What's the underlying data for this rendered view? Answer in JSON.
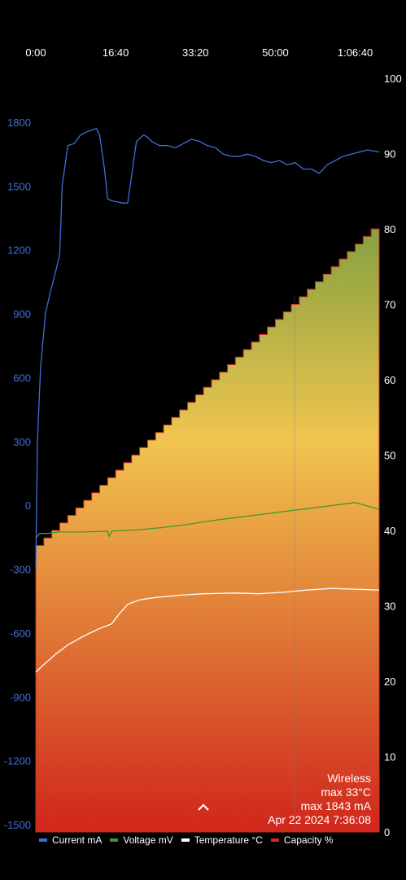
{
  "info": {
    "source": "Wireless",
    "max_temp": "max 33°C",
    "max_current": "max 1843 mA",
    "timestamp": "Apr 22 2024 7:36:08"
  },
  "icons": {
    "expand": "chevron-up-icon"
  },
  "colors": {
    "current": "#3f6fd4",
    "voltage": "#3f9a2a",
    "temperature": "#ffffff",
    "capacity": "#d22a1e",
    "grad_top": "#86a140",
    "grad_mid": "#f0c54f",
    "grad_bottom": "#d0261c"
  },
  "chart_data": {
    "type": "line",
    "x_ticks": [
      "0:00",
      "16:40",
      "33:20",
      "50:00",
      "1:06:40"
    ],
    "x_tick_values_s": [
      0,
      1000,
      2000,
      3000,
      4000
    ],
    "xlim_s": [
      0,
      4300
    ],
    "left_axis": {
      "ticks": [
        1800,
        1500,
        1200,
        900,
        600,
        300,
        0,
        -300,
        -600,
        -900,
        -1200,
        -1500
      ],
      "range": [
        -1500,
        1800
      ]
    },
    "right_axis": {
      "ticks": [
        100,
        90,
        80,
        70,
        60,
        50,
        40,
        30,
        20,
        10,
        0
      ],
      "range": [
        0,
        100
      ]
    },
    "legend": [
      "Current mA",
      "Voltage mV",
      "Temperature °C",
      "Capacity %"
    ],
    "series": [
      {
        "name": "Current mA",
        "axis": "left",
        "points": [
          [
            0,
            -300
          ],
          [
            20,
            300
          ],
          [
            60,
            650
          ],
          [
            120,
            900
          ],
          [
            180,
            1000
          ],
          [
            250,
            1100
          ],
          [
            300,
            1180
          ],
          [
            330,
            1500
          ],
          [
            400,
            1690
          ],
          [
            480,
            1700
          ],
          [
            560,
            1740
          ],
          [
            640,
            1755
          ],
          [
            760,
            1770
          ],
          [
            800,
            1740
          ],
          [
            860,
            1580
          ],
          [
            900,
            1440
          ],
          [
            960,
            1430
          ],
          [
            1100,
            1420
          ],
          [
            1150,
            1420
          ],
          [
            1200,
            1550
          ],
          [
            1260,
            1710
          ],
          [
            1350,
            1740
          ],
          [
            1400,
            1730
          ],
          [
            1450,
            1710
          ],
          [
            1550,
            1690
          ],
          [
            1650,
            1690
          ],
          [
            1750,
            1680
          ],
          [
            1850,
            1700
          ],
          [
            1950,
            1720
          ],
          [
            2050,
            1710
          ],
          [
            2150,
            1690
          ],
          [
            2250,
            1680
          ],
          [
            2350,
            1650
          ],
          [
            2450,
            1640
          ],
          [
            2550,
            1640
          ],
          [
            2650,
            1650
          ],
          [
            2750,
            1640
          ],
          [
            2850,
            1620
          ],
          [
            2950,
            1610
          ],
          [
            3050,
            1620
          ],
          [
            3150,
            1600
          ],
          [
            3250,
            1610
          ],
          [
            3350,
            1580
          ],
          [
            3450,
            1580
          ],
          [
            3550,
            1560
          ],
          [
            3650,
            1600
          ],
          [
            3750,
            1620
          ],
          [
            3850,
            1640
          ],
          [
            3950,
            1650
          ],
          [
            4050,
            1660
          ],
          [
            4150,
            1670
          ],
          [
            4300,
            1660
          ]
        ]
      },
      {
        "name": "Voltage mV",
        "axis": "right",
        "points": [
          [
            0,
            39.0
          ],
          [
            50,
            39.6
          ],
          [
            150,
            39.6
          ],
          [
            300,
            39.8
          ],
          [
            600,
            39.8
          ],
          [
            900,
            39.9
          ],
          [
            920,
            39.2
          ],
          [
            950,
            39.9
          ],
          [
            1300,
            40.1
          ],
          [
            1600,
            40.4
          ],
          [
            1900,
            40.8
          ],
          [
            2200,
            41.3
          ],
          [
            2500,
            41.7
          ],
          [
            2800,
            42.1
          ],
          [
            3100,
            42.5
          ],
          [
            3400,
            42.9
          ],
          [
            3700,
            43.3
          ],
          [
            4000,
            43.7
          ],
          [
            4300,
            42.8
          ]
        ]
      },
      {
        "name": "Temperature °C",
        "axis": "right",
        "points": [
          [
            0,
            21.2
          ],
          [
            100,
            22.2
          ],
          [
            250,
            23.6
          ],
          [
            400,
            24.8
          ],
          [
            600,
            26.0
          ],
          [
            800,
            27.0
          ],
          [
            950,
            27.6
          ],
          [
            1050,
            29.0
          ],
          [
            1150,
            30.2
          ],
          [
            1300,
            30.8
          ],
          [
            1500,
            31.1
          ],
          [
            1800,
            31.4
          ],
          [
            2100,
            31.6
          ],
          [
            2500,
            31.7
          ],
          [
            2800,
            31.6
          ],
          [
            3100,
            31.8
          ],
          [
            3400,
            32.1
          ],
          [
            3700,
            32.3
          ],
          [
            4000,
            32.2
          ],
          [
            4300,
            32.1
          ]
        ]
      },
      {
        "name": "Capacity %",
        "axis": "right",
        "points": [
          [
            0,
            37
          ],
          [
            4300,
            80
          ]
        ],
        "steps": 43
      }
    ]
  }
}
